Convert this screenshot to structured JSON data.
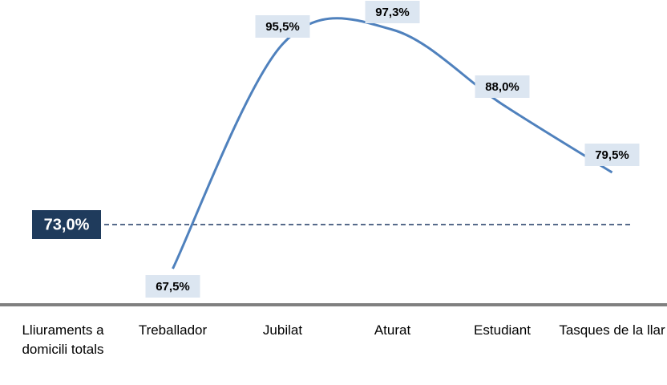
{
  "chart_data": {
    "type": "line",
    "categories": [
      "Lliuraments a domicili totals",
      "Treballador",
      "Jubilat",
      "Aturat",
      "Estudiant",
      "Tasques de la llar"
    ],
    "series": [
      {
        "color": "#4f81bd",
        "values": [
          null,
          67.5,
          95.5,
          97.3,
          88.0,
          79.5
        ],
        "value_labels": [
          null,
          "67,5%",
          "95,5%",
          "97,3%",
          "88,0%",
          "79,5%"
        ]
      }
    ],
    "reference": {
      "value": 73.0,
      "label": "73,0%",
      "color": "#1f3864"
    },
    "ylim": [
      63,
      100
    ]
  }
}
